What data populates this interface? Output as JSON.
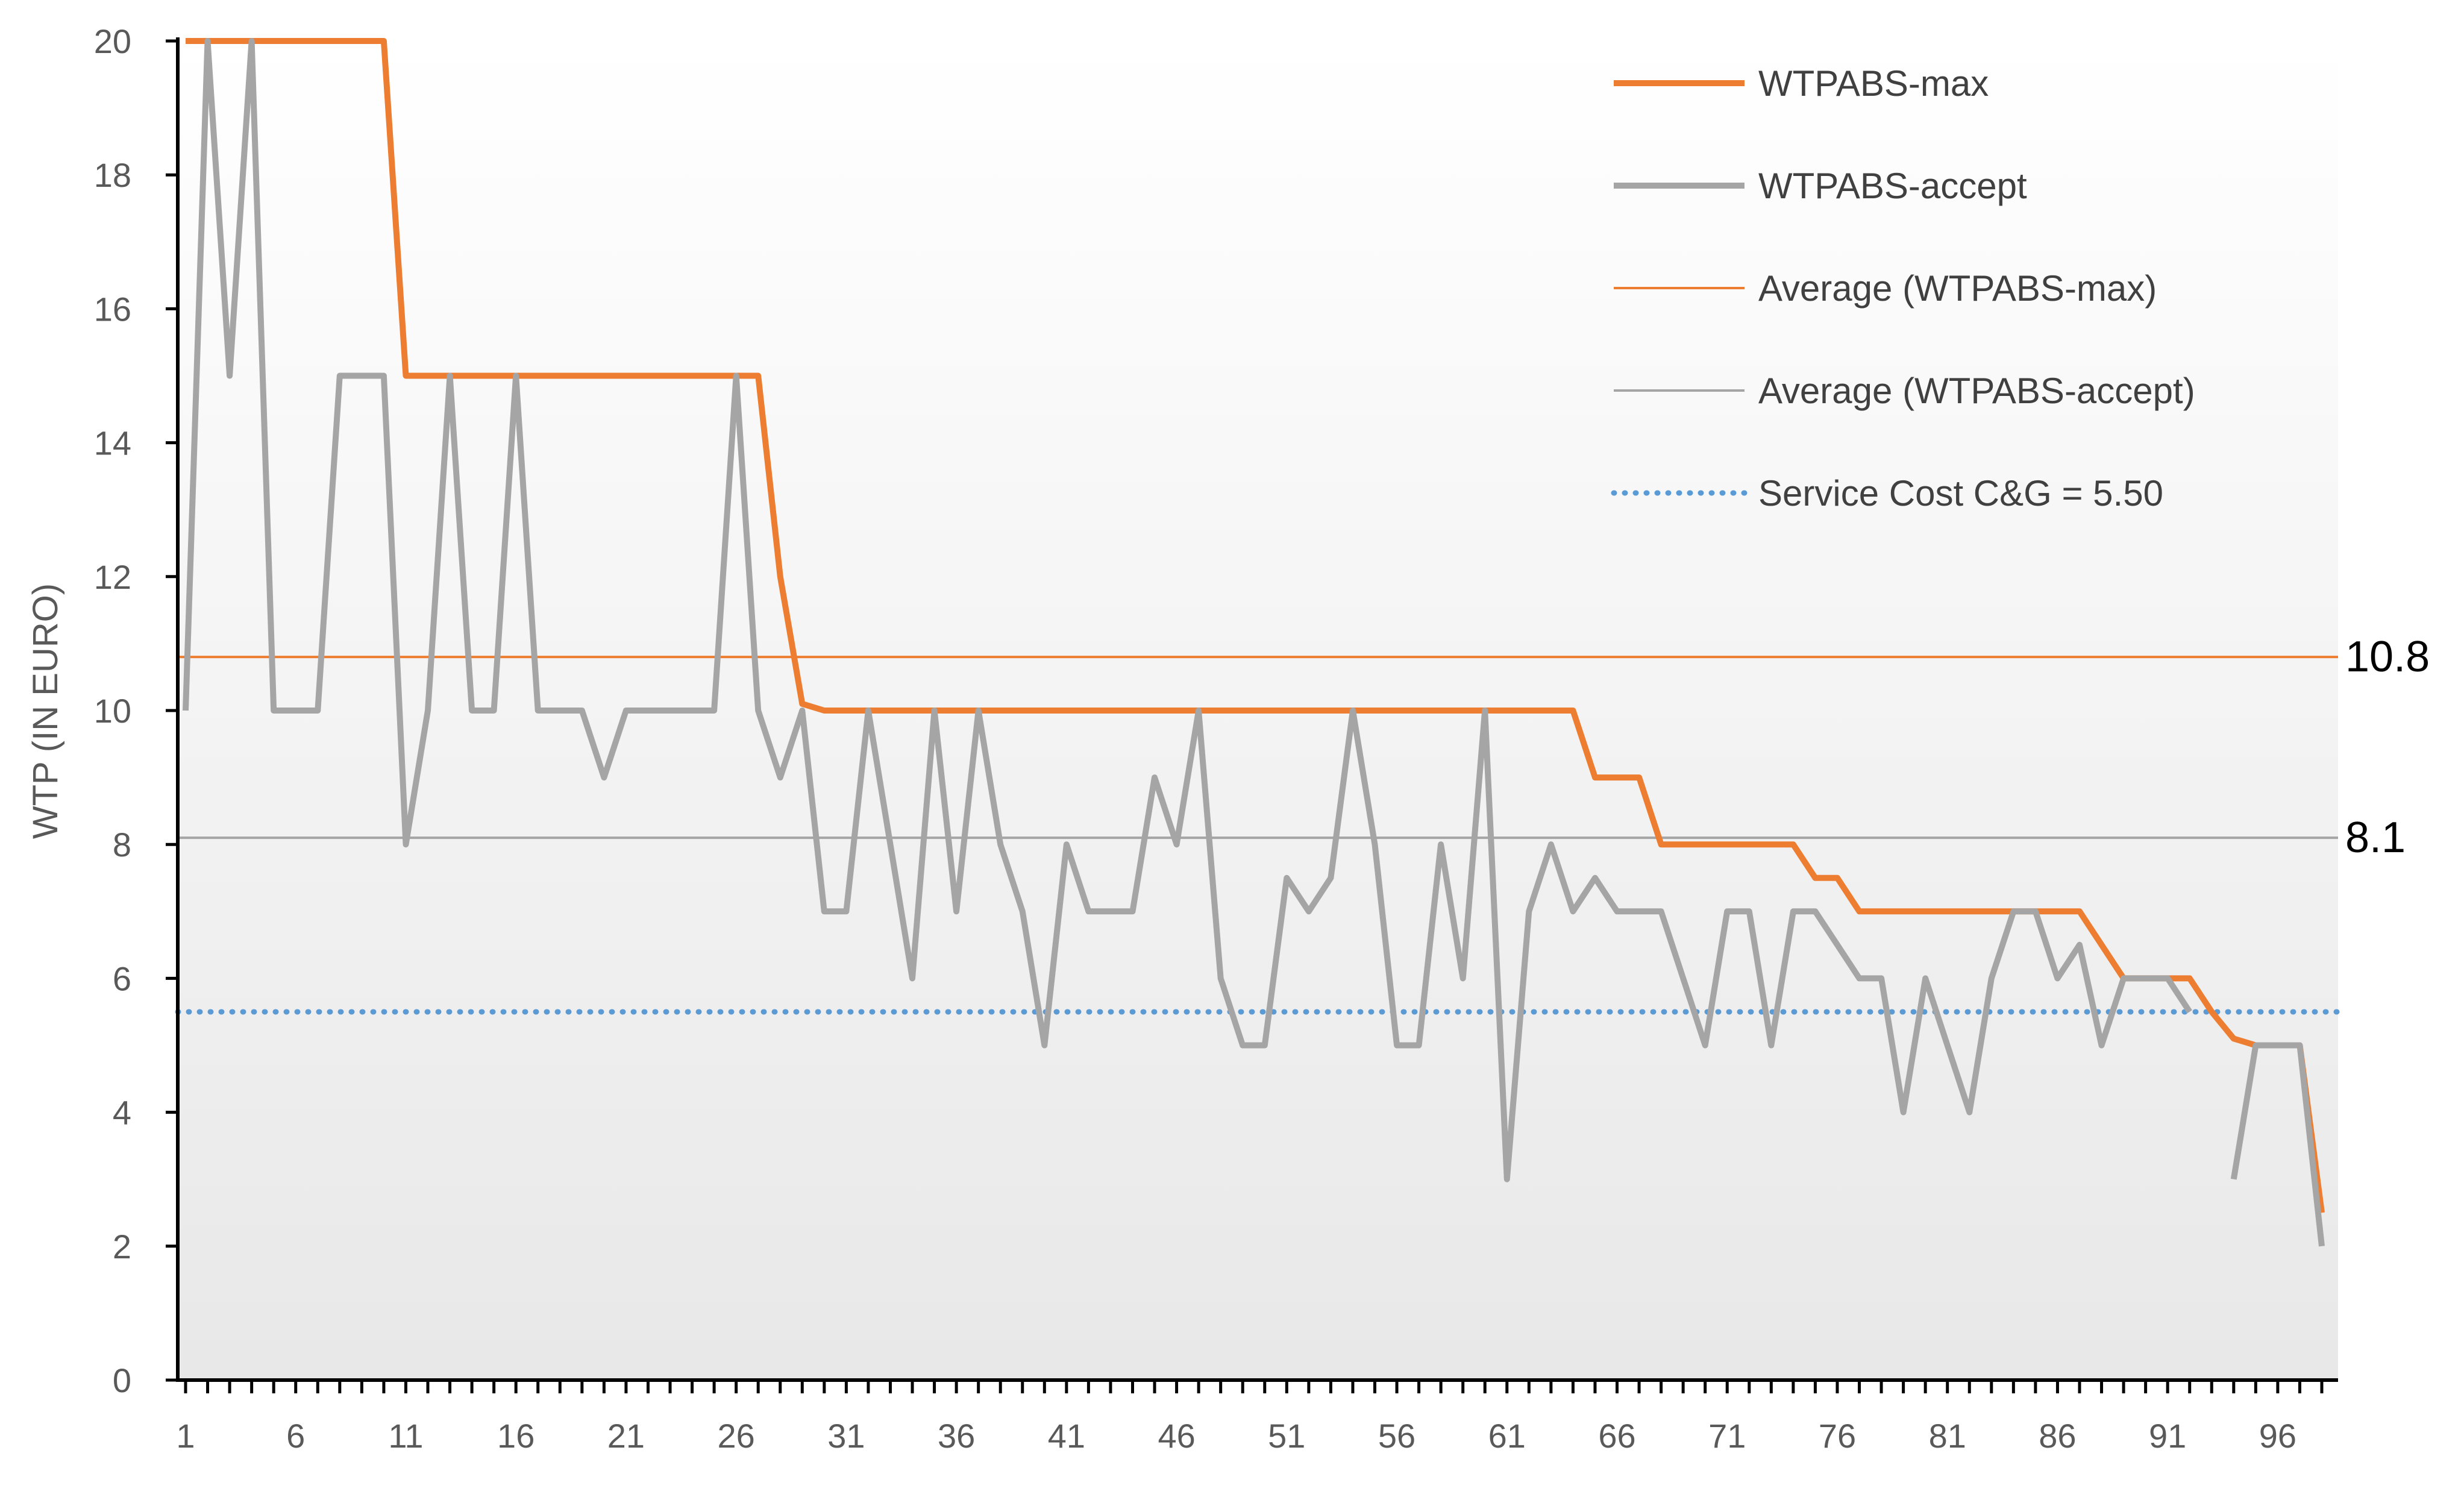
{
  "chart_data": {
    "type": "line",
    "title": "",
    "xlabel": "",
    "ylabel": "WTP (IN EURO)",
    "ylim": [
      0,
      20
    ],
    "yticks": [
      0,
      2,
      4,
      6,
      8,
      10,
      12,
      14,
      16,
      18,
      20
    ],
    "xlim": [
      1,
      98
    ],
    "xticks": [
      1,
      6,
      11,
      16,
      21,
      26,
      31,
      36,
      41,
      46,
      51,
      56,
      61,
      66,
      71,
      76,
      81,
      86,
      91,
      96
    ],
    "x": [
      1,
      2,
      3,
      4,
      5,
      6,
      7,
      8,
      9,
      10,
      11,
      12,
      13,
      14,
      15,
      16,
      17,
      18,
      19,
      20,
      21,
      22,
      23,
      24,
      25,
      26,
      27,
      28,
      29,
      30,
      31,
      32,
      33,
      34,
      35,
      36,
      37,
      38,
      39,
      40,
      41,
      42,
      43,
      44,
      45,
      46,
      47,
      48,
      49,
      50,
      51,
      52,
      53,
      54,
      55,
      56,
      57,
      58,
      59,
      60,
      61,
      62,
      63,
      64,
      65,
      66,
      67,
      68,
      69,
      70,
      71,
      72,
      73,
      74,
      75,
      76,
      77,
      78,
      79,
      80,
      81,
      82,
      83,
      84,
      85,
      86,
      87,
      88,
      89,
      90,
      91,
      92,
      93,
      94,
      95,
      96,
      97,
      98
    ],
    "series": [
      {
        "name": "WTPABS-max",
        "color": "#ED7D31",
        "values": [
          20,
          20,
          20,
          20,
          20,
          20,
          20,
          20,
          20,
          20,
          15,
          15,
          15,
          15,
          15,
          15,
          15,
          15,
          15,
          15,
          15,
          15,
          15,
          15,
          15,
          15,
          15,
          12,
          10.1,
          10,
          10,
          10,
          10,
          10,
          10,
          10,
          10,
          10,
          10,
          10,
          10,
          10,
          10,
          10,
          10,
          10,
          10,
          10,
          10,
          10,
          10,
          10,
          10,
          10,
          10,
          10,
          10,
          10,
          10,
          10,
          10,
          10,
          10,
          10,
          9,
          9,
          9,
          8,
          8,
          8,
          8,
          8,
          8,
          8,
          7.5,
          7.5,
          7,
          7,
          7,
          7,
          7,
          7,
          7,
          7,
          7,
          7,
          7,
          6.5,
          6,
          6,
          6,
          6,
          5.5,
          5.1,
          5,
          5,
          5,
          2.5
        ]
      },
      {
        "name": "WTPABS-accept",
        "color": "#A5A5A5",
        "values": [
          10,
          20,
          15,
          20,
          10,
          10,
          10,
          15,
          15,
          15,
          8,
          10,
          15,
          10,
          10,
          15,
          10,
          10,
          10,
          9,
          10,
          10,
          10,
          10,
          10,
          15,
          10,
          9,
          10,
          7,
          7,
          10,
          8,
          6,
          10,
          7,
          10,
          8,
          7,
          5,
          8,
          7,
          7,
          7,
          9,
          8,
          10,
          6,
          5,
          5,
          7.5,
          7,
          7.5,
          10,
          8,
          5,
          5,
          8,
          6,
          10,
          3,
          7,
          8,
          7,
          7.5,
          7,
          7,
          7,
          6,
          5,
          7,
          7,
          5,
          7,
          7,
          6.5,
          6,
          6,
          4,
          6,
          5,
          4,
          6,
          7,
          7,
          6,
          6.5,
          5,
          6,
          6,
          6,
          5.5,
          null,
          3,
          5,
          5,
          5,
          2
        ]
      },
      {
        "name": "Average (WTPABS-max)",
        "color": "#ED7D31",
        "constant": 10.8,
        "label": "10.8"
      },
      {
        "name": "Average (WTPABS-accept)",
        "color": "#A5A5A5",
        "constant": 8.1,
        "label": "8.1"
      },
      {
        "name": "Service Cost C&G = 5.50",
        "color": "#5B9BD5",
        "constant": 5.5
      }
    ],
    "legend_position": "top-right",
    "grid": false
  }
}
